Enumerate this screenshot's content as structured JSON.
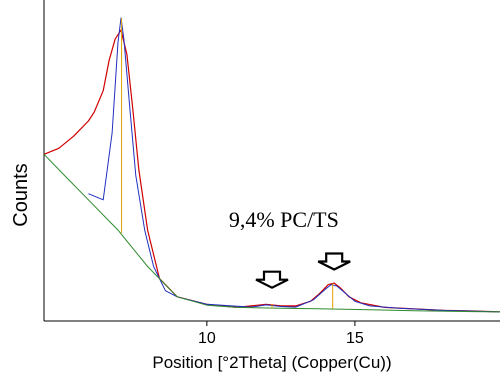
{
  "chart_data": {
    "type": "line",
    "title": "",
    "xlabel": "Position [°2Theta] (Copper(Cu))",
    "ylabel": "Counts",
    "xlim": [
      4.5,
      19.9
    ],
    "ylim": [
      0,
      100
    ],
    "x_ticks": [
      {
        "value": 10,
        "label": "10"
      },
      {
        "value": 15,
        "label": "15"
      }
    ],
    "grid": false,
    "annotation": {
      "text": "9,4% PC/TS",
      "x": 12.6,
      "y": 31
    },
    "arrows": [
      {
        "name": "peak-arrow-1",
        "x": 12.2,
        "y": 11
      },
      {
        "name": "peak-arrow-2",
        "x": 14.3,
        "y": 17
      }
    ],
    "series": [
      {
        "role": "measured",
        "color": "#d00000",
        "x": [
          4.5,
          5.0,
          5.5,
          6.0,
          6.2,
          6.5,
          6.7,
          6.9,
          7.1,
          7.3,
          7.5,
          7.7,
          8.0,
          8.4,
          9.0,
          10.0,
          11.0,
          11.5,
          12.0,
          12.5,
          13.0,
          13.5,
          13.8,
          14.1,
          14.3,
          14.5,
          14.8,
          15.2,
          16.0,
          17.0,
          18.0,
          19.0,
          19.9
        ],
        "y": [
          55,
          57,
          61,
          66,
          69,
          76,
          86,
          93,
          96,
          88,
          70,
          50,
          30,
          14,
          8,
          5.5,
          4.5,
          5,
          5.5,
          5,
          5,
          6.5,
          9,
          12,
          12.5,
          11,
          8,
          6,
          4.5,
          4,
          3.5,
          3.3,
          3
        ]
      },
      {
        "role": "fit",
        "color": "#2030c0",
        "x": [
          6.0,
          6.5,
          6.8,
          7.0,
          7.1,
          7.2,
          7.4,
          7.6,
          7.9,
          8.2,
          8.6,
          9.0,
          10.0,
          11.5,
          12.0,
          12.5,
          13.0,
          13.6,
          14.0,
          14.2,
          14.4,
          14.7,
          15.0,
          15.5,
          16.5,
          18.0,
          19.9
        ],
        "y": [
          42,
          40,
          62,
          92,
          100,
          93,
          70,
          48,
          30,
          18,
          10,
          8,
          5.5,
          4.6,
          5.3,
          4.8,
          4.6,
          7,
          10.5,
          12,
          11.5,
          9,
          6.5,
          5,
          4.2,
          3.5,
          3
        ]
      },
      {
        "role": "background",
        "color": "#2e8b2e",
        "x": [
          4.5,
          5.2,
          6.0,
          7.0,
          8.0,
          9.0,
          10.0,
          11.0,
          12.5,
          14.0,
          15.5,
          17.0,
          19.0,
          19.9
        ],
        "y": [
          55,
          48,
          40,
          30,
          18,
          8,
          5.2,
          4.5,
          4.2,
          4,
          3.7,
          3.4,
          3.1,
          3
        ]
      }
    ],
    "peak_markers": [
      {
        "color": "#e0a000",
        "x": 7.12,
        "y_top": 100,
        "y_bottom": 29
      },
      {
        "color": "#e0a000",
        "x": 12.2,
        "y_top": 5.6,
        "y_bottom": 4.2
      },
      {
        "color": "#e0a000",
        "x": 14.25,
        "y_top": 12.4,
        "y_bottom": 4
      }
    ]
  }
}
